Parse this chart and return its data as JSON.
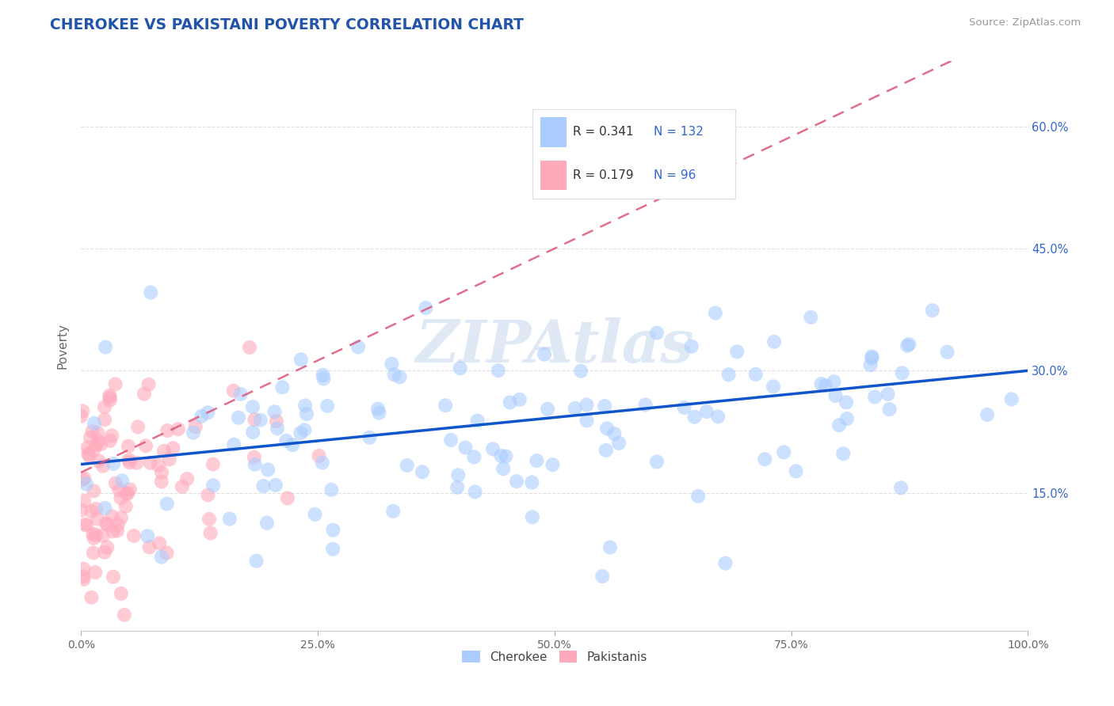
{
  "title": "CHEROKEE VS PAKISTANI POVERTY CORRELATION CHART",
  "source": "Source: ZipAtlas.com",
  "ylabel": "Poverty",
  "xlim": [
    0,
    1.0
  ],
  "ylim": [
    -0.02,
    0.68
  ],
  "xticks": [
    0.0,
    0.25,
    0.5,
    0.75,
    1.0
  ],
  "xtick_labels": [
    "0.0%",
    "25.0%",
    "50.0%",
    "75.0%",
    "100.0%"
  ],
  "ytick_labels": [
    "15.0%",
    "30.0%",
    "45.0%",
    "60.0%"
  ],
  "ytick_vals": [
    0.15,
    0.3,
    0.45,
    0.6
  ],
  "cherokee_R": 0.341,
  "cherokee_N": 132,
  "pakistani_R": 0.179,
  "pakistani_N": 96,
  "cherokee_color": "#aaccff",
  "pakistani_color": "#ffaabb",
  "cherokee_line_color": "#1155cc",
  "pakistani_line_color": "#dd5577",
  "watermark": "ZIPAtlas",
  "background_color": "#ffffff",
  "grid_color": "#cccccc",
  "title_color": "#2255aa",
  "seed": 7,
  "legend_R_color": "#333333",
  "legend_N_color": "#3366cc",
  "legend_text_color": "#333333"
}
